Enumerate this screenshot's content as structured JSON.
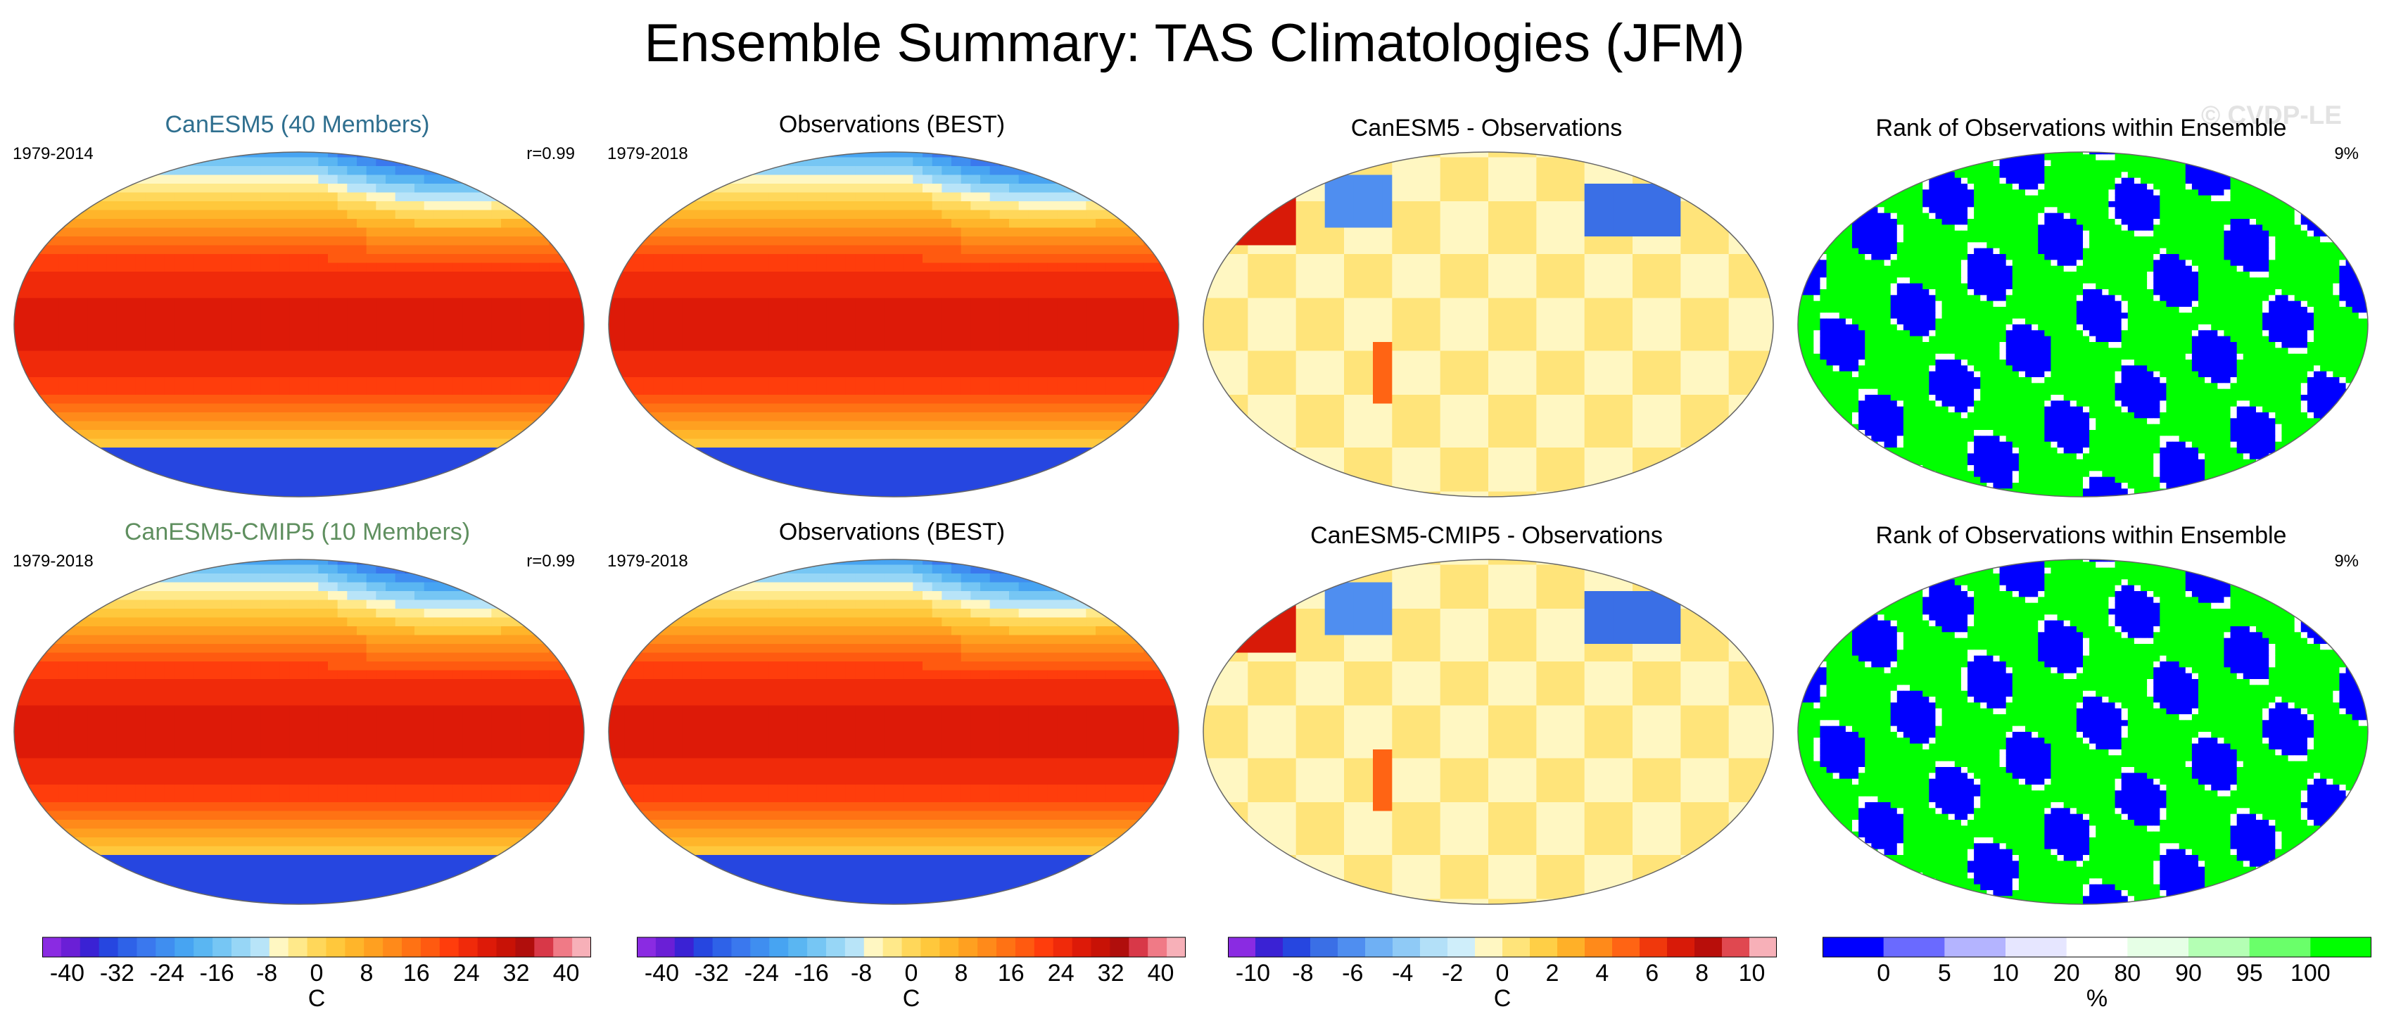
{
  "figure_title": "Ensemble Summary: TAS Climatologies (JFM)",
  "watermark": "© CVDP-LE",
  "panels": [
    {
      "title": "CanESM5 (40 Members)",
      "title_color": "#2f6f8f",
      "years": "1979-2014",
      "corr": "r=0.99",
      "kind": "clim"
    },
    {
      "title": "Observations (BEST)",
      "title_color": "#000000",
      "years": "1979-2018",
      "corr": "",
      "kind": "clim"
    },
    {
      "title": "CanESM5 - Observations",
      "title_color": "#000000",
      "years": "",
      "corr": "",
      "kind": "diff"
    },
    {
      "title": "Rank of Observations within Ensemble",
      "title_color": "#000000",
      "years": "",
      "corr": "9%",
      "kind": "rank"
    },
    {
      "title": "CanESM5-CMIP5 (10 Members)",
      "title_color": "#5f8f5f",
      "years": "1979-2018",
      "corr": "r=0.99",
      "kind": "clim"
    },
    {
      "title": "Observations (BEST)",
      "title_color": "#000000",
      "years": "1979-2018",
      "corr": "",
      "kind": "clim"
    },
    {
      "title": "CanESM5-CMIP5 - Observations",
      "title_color": "#000000",
      "years": "",
      "corr": "",
      "kind": "diff"
    },
    {
      "title": "Rank of Observations within Ensemble",
      "title_color": "#000000",
      "years": "",
      "corr": "9%",
      "kind": "rank"
    }
  ],
  "chart_data": [
    {
      "type": "heatmap",
      "name": "colorbar-climatology-1",
      "unit": "C",
      "range": [
        -44,
        44
      ],
      "tick_labels": [
        "-40",
        "-32",
        "-24",
        "-16",
        "-8",
        "0",
        "8",
        "16",
        "24",
        "32",
        "40"
      ],
      "colors": [
        "#8a2be2",
        "#6a1fd6",
        "#3a22d4",
        "#2646e0",
        "#2e62e8",
        "#3a78ee",
        "#3f8ef0",
        "#47a4f2",
        "#5ab6f2",
        "#76c6f4",
        "#97d6f6",
        "#b8e4f8",
        "#fff7c2",
        "#ffe98a",
        "#ffd75a",
        "#ffc83c",
        "#ffb52a",
        "#ffa020",
        "#ff8a1a",
        "#ff7214",
        "#ff5a10",
        "#ff3d0c",
        "#f02a0a",
        "#dd1a08",
        "#c81206",
        "#b00e0c",
        "#d83848",
        "#f07a86",
        "#f7b0b8"
      ]
    },
    {
      "type": "heatmap",
      "name": "colorbar-climatology-2",
      "unit": "C",
      "range": [
        -44,
        44
      ],
      "tick_labels": [
        "-40",
        "-32",
        "-24",
        "-16",
        "-8",
        "0",
        "8",
        "16",
        "24",
        "32",
        "40"
      ],
      "colors": [
        "#8a2be2",
        "#6a1fd6",
        "#3a22d4",
        "#2646e0",
        "#2e62e8",
        "#3a78ee",
        "#3f8ef0",
        "#47a4f2",
        "#5ab6f2",
        "#76c6f4",
        "#97d6f6",
        "#b8e4f8",
        "#fff7c2",
        "#ffe98a",
        "#ffd75a",
        "#ffc83c",
        "#ffb52a",
        "#ffa020",
        "#ff8a1a",
        "#ff7214",
        "#ff5a10",
        "#ff3d0c",
        "#f02a0a",
        "#dd1a08",
        "#c81206",
        "#b00e0c",
        "#d83848",
        "#f07a86",
        "#f7b0b8"
      ]
    },
    {
      "type": "heatmap",
      "name": "colorbar-difference",
      "unit": "C",
      "range": [
        -11,
        11
      ],
      "tick_labels": [
        "-10",
        "-8",
        "-6",
        "-4",
        "-2",
        "0",
        "2",
        "4",
        "6",
        "8",
        "10"
      ],
      "colors": [
        "#8a2be2",
        "#3a22d4",
        "#2646e0",
        "#3a6fe6",
        "#4f8ef0",
        "#6fb0f4",
        "#8fcaf6",
        "#b3e0f8",
        "#cfeefa",
        "#fff7c2",
        "#ffe47a",
        "#ffcf46",
        "#ffb028",
        "#ff8a1a",
        "#ff6414",
        "#f0380c",
        "#d81a08",
        "#b80e0a",
        "#e04850",
        "#f7b0b8"
      ]
    },
    {
      "type": "heatmap",
      "name": "colorbar-rank",
      "unit": "%",
      "tick_labels": [
        "0",
        "5",
        "10",
        "20",
        "80",
        "90",
        "95",
        "100"
      ],
      "colors": [
        "#0000ff",
        "#6a6aff",
        "#b4b4ff",
        "#e6e6ff",
        "#ffffff",
        "#e6ffe6",
        "#b4ffb4",
        "#6aff6a",
        "#00ff00"
      ]
    }
  ]
}
